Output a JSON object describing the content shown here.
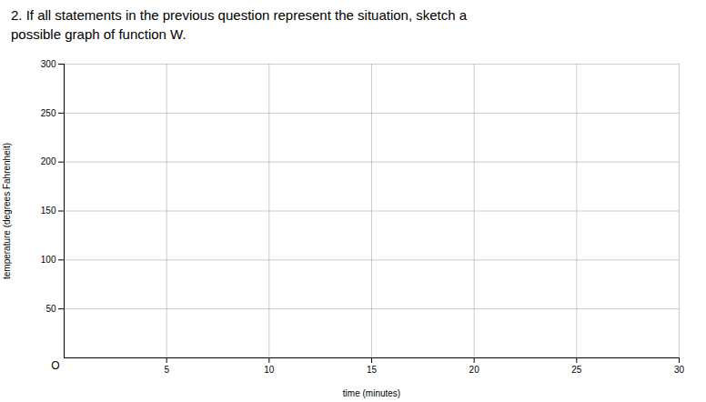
{
  "chart_data": {
    "type": "line",
    "title": "2.  If all statements in the previous question represent the situation, sketch a",
    "subtitle": "possible graph of function W.",
    "x_label": "time (minutes)",
    "y_label": "temperature (degrees Fahrenheit)",
    "xlim": [
      0,
      30
    ],
    "xticks": [
      5,
      10,
      15,
      20,
      25,
      30
    ],
    "ylim": [
      0,
      300
    ],
    "yticks": [
      50,
      100,
      150,
      200,
      250,
      300
    ],
    "grid": true,
    "series": [],
    "annotations": [
      {
        "text": "O",
        "x": 0,
        "y": 0
      }
    ]
  }
}
